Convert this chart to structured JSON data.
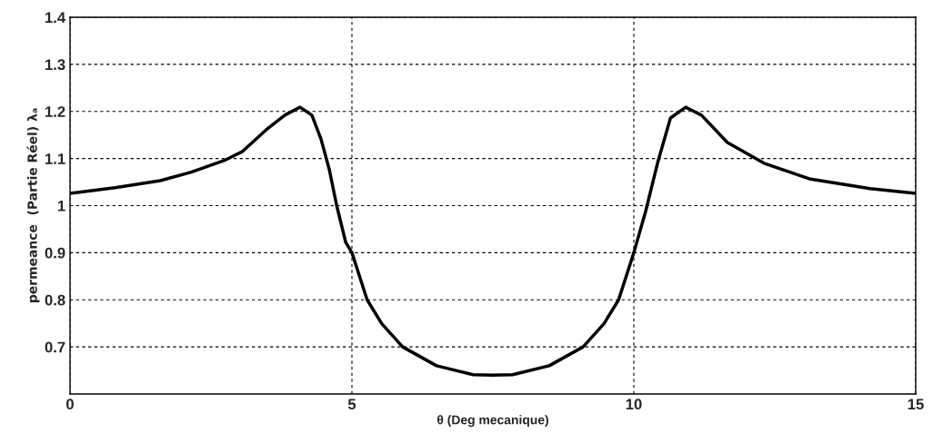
{
  "chart_data": {
    "type": "line",
    "xlabel": "θ (Deg mecanique)",
    "ylabel": "permeance  (Partie Réel) λₐ",
    "x": [
      0,
      0.8,
      1.6,
      2.15,
      2.74,
      3.06,
      3.48,
      3.81,
      4.08,
      4.29,
      4.45,
      4.6,
      4.73,
      4.89,
      5.0,
      5.27,
      5.53,
      5.9,
      6.5,
      7.15,
      7.5,
      7.85,
      8.5,
      9.1,
      9.47,
      9.73,
      10.0,
      10.21,
      10.42,
      10.65,
      10.92,
      11.2,
      11.66,
      12.31,
      13.11,
      14.19,
      15
    ],
    "series": [
      {
        "color": "#000000",
        "values": [
          1.026,
          1.038,
          1.053,
          1.071,
          1.096,
          1.115,
          1.161,
          1.192,
          1.209,
          1.192,
          1.142,
          1.076,
          1.0,
          0.922,
          0.9,
          0.8,
          0.749,
          0.7,
          0.66,
          0.641,
          0.64,
          0.641,
          0.66,
          0.7,
          0.749,
          0.8,
          0.9,
          0.988,
          1.09,
          1.186,
          1.209,
          1.192,
          1.134,
          1.09,
          1.057,
          1.036,
          1.026
        ]
      }
    ],
    "xlim": [
      0,
      15
    ],
    "xticks": [
      0,
      5,
      10,
      15
    ],
    "ylim": [
      0.6,
      1.4
    ],
    "yticks": [
      0.7,
      0.8,
      0.9,
      1,
      1.1,
      1.2,
      1.3,
      1.4
    ],
    "grid": true,
    "line_style": "solid"
  }
}
